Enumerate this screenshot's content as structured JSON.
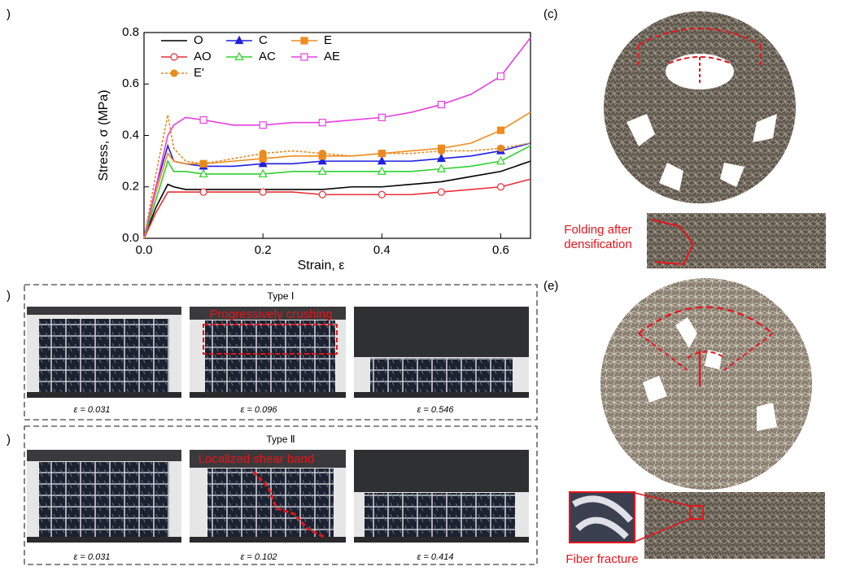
{
  "chart_data": {
    "type": "line",
    "xlabel": "Strain, ε",
    "ylabel": "Stress, σ (MPa)",
    "x": [
      0,
      0.02,
      0.04,
      0.05,
      0.07,
      0.1,
      0.15,
      0.2,
      0.25,
      0.3,
      0.35,
      0.4,
      0.45,
      0.5,
      0.55,
      0.6,
      0.65
    ],
    "xlim": [
      0,
      0.65
    ],
    "ylim": [
      0,
      0.8
    ],
    "xticks": [
      {
        "value": 0,
        "label": "0.0"
      },
      0.2,
      0.4,
      0.6
    ],
    "yticks": [
      {
        "value": 0,
        "label": "0.0"
      },
      0.2,
      0.4,
      0.6,
      0.8
    ],
    "series": [
      {
        "name": "O",
        "color": "#000000",
        "marker": "none",
        "dashed": false,
        "values": [
          0,
          0.12,
          0.21,
          0.2,
          0.19,
          0.19,
          0.19,
          0.19,
          0.19,
          0.19,
          0.2,
          0.2,
          0.21,
          0.22,
          0.24,
          0.26,
          0.3
        ]
      },
      {
        "name": "C",
        "color": "#1f1fe0",
        "marker": "triangle",
        "dashed": false,
        "values": [
          0,
          0.2,
          0.36,
          0.3,
          0.29,
          0.28,
          0.28,
          0.29,
          0.29,
          0.3,
          0.3,
          0.3,
          0.3,
          0.31,
          0.32,
          0.34,
          0.37
        ]
      },
      {
        "name": "E",
        "color": "#f08c1e",
        "marker": "square",
        "dashed": false,
        "values": [
          0,
          0.18,
          0.33,
          0.3,
          0.29,
          0.29,
          0.3,
          0.31,
          0.32,
          0.32,
          0.32,
          0.33,
          0.34,
          0.35,
          0.37,
          0.42,
          0.49
        ]
      },
      {
        "name": "AO",
        "color": "#e8303a",
        "marker": "open-circle",
        "dashed": false,
        "values": [
          0,
          0.1,
          0.18,
          0.18,
          0.18,
          0.18,
          0.18,
          0.18,
          0.18,
          0.17,
          0.17,
          0.17,
          0.17,
          0.18,
          0.19,
          0.2,
          0.23
        ]
      },
      {
        "name": "AC",
        "color": "#2ed12e",
        "marker": "open-triangle",
        "dashed": false,
        "values": [
          0,
          0.15,
          0.3,
          0.26,
          0.26,
          0.25,
          0.25,
          0.25,
          0.26,
          0.26,
          0.26,
          0.26,
          0.26,
          0.27,
          0.28,
          0.3,
          0.36
        ]
      },
      {
        "name": "AE",
        "color": "#e83ee0",
        "marker": "open-square",
        "dashed": false,
        "values": [
          0,
          0.2,
          0.4,
          0.44,
          0.47,
          0.46,
          0.44,
          0.44,
          0.45,
          0.45,
          0.46,
          0.47,
          0.49,
          0.52,
          0.56,
          0.63,
          0.78
        ]
      },
      {
        "name": "E'",
        "color": "#e88a20",
        "marker": "circle",
        "dashed": true,
        "values": [
          0,
          0.25,
          0.48,
          0.35,
          0.3,
          0.29,
          0.31,
          0.33,
          0.34,
          0.33,
          0.32,
          0.33,
          0.33,
          0.34,
          0.34,
          0.35,
          0.37
        ]
      }
    ]
  },
  "panel_labels": [
    ")",
    ")",
    ")",
    "(c)",
    "(e)"
  ],
  "type1": {
    "title": "Type Ⅰ",
    "annotation": "Progressively crushing",
    "captions": [
      "ε = 0.031",
      "ε = 0.096",
      "ε = 0.546"
    ]
  },
  "type2": {
    "title": "Type Ⅱ",
    "annotation": "Localized shear band",
    "captions": [
      "ε = 0.031",
      "ε = 0.102",
      "ε = 0.414"
    ]
  },
  "folding": [
    "Folding after",
    "densification"
  ],
  "fiber": "Fiber fracture"
}
